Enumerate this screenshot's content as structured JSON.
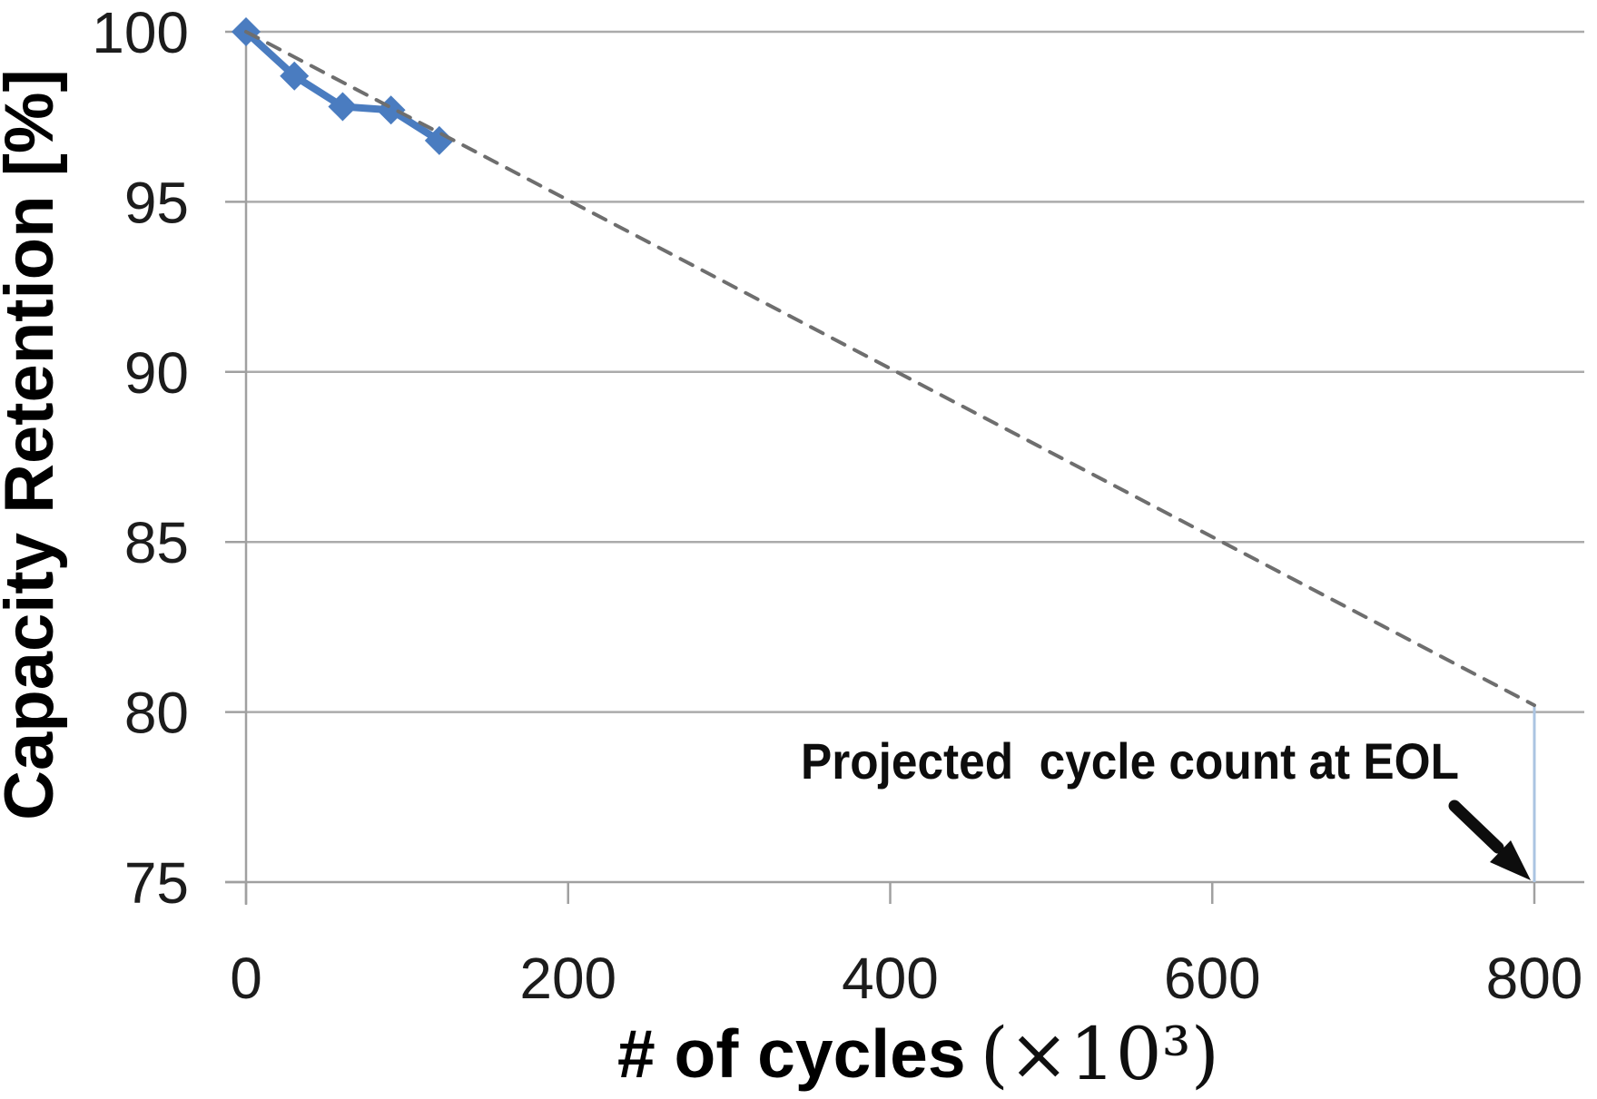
{
  "chart_data": {
    "type": "line",
    "title": "",
    "xlabel": "# of cycles",
    "xlabel_suffix": "(×10³)",
    "ylabel": "Capacity Retention [%]",
    "xlim": [
      0,
      800
    ],
    "ylim": [
      75,
      100
    ],
    "x_ticks": [
      0,
      200,
      400,
      600,
      800
    ],
    "y_ticks": [
      100,
      95,
      90,
      85,
      80,
      75
    ],
    "grid": "horizontal-only",
    "legend": "none",
    "series": [
      {
        "name": "measured-capacity-retention",
        "style": "solid",
        "marker": "diamond",
        "color": "#4a7cc0",
        "x": [
          0,
          30,
          60,
          90,
          120
        ],
        "y": [
          100,
          98.7,
          97.8,
          97.7,
          96.8
        ]
      },
      {
        "name": "linear-projection-to-eol",
        "style": "dashed",
        "marker": "none",
        "color": "#6e6e6e",
        "x": [
          0,
          800
        ],
        "y": [
          100,
          80.2
        ]
      }
    ],
    "drop_line": {
      "x": 800,
      "y_top": 80.2,
      "y_bottom": 75,
      "color": "#abc4e2"
    },
    "annotation": {
      "text": "Projected  cycle count at EOL",
      "points_to": {
        "x": 800,
        "y": 75
      }
    },
    "colors": {
      "gridline": "#ababab",
      "axis": "#a0a0a0",
      "tick": "#a0a0a0"
    }
  }
}
